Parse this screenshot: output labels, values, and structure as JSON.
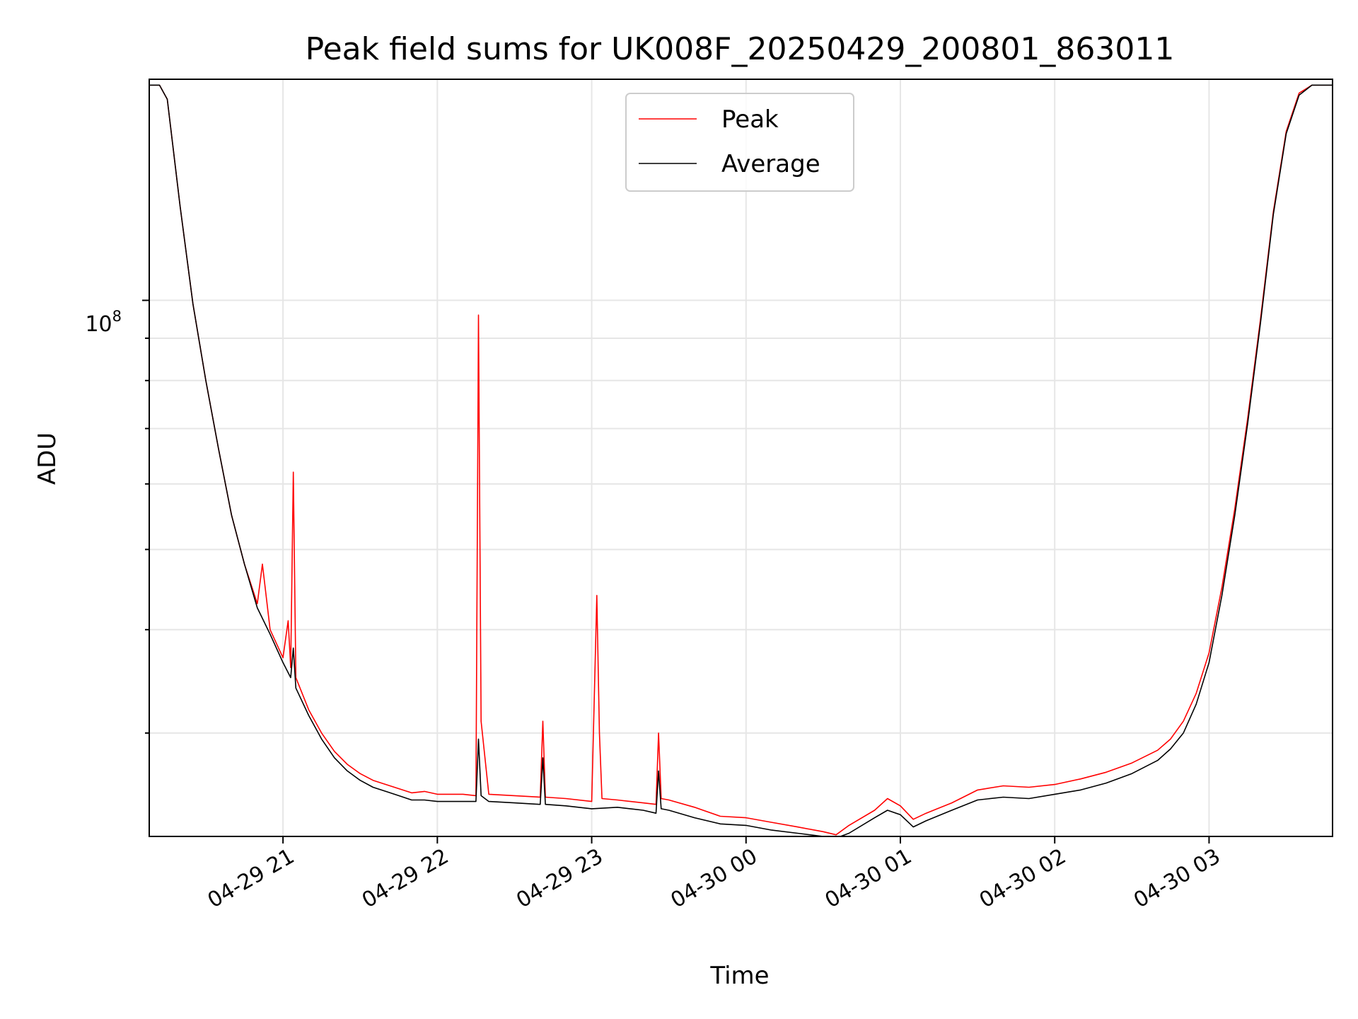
{
  "chart_data": {
    "type": "line",
    "title": "Peak field sums for UK008F_20250429_200801_863011",
    "xlabel": "Time",
    "ylabel": "ADU",
    "y_scale": "log",
    "grid": true,
    "legend_position": "top-center",
    "x_tick_labels": [
      "04-29 21",
      "04-29 22",
      "04-29 23",
      "04-30 00",
      "04-30 01",
      "04-30 02",
      "04-30 03"
    ],
    "x_tick_values": [
      "2025-04-29 21:00",
      "2025-04-29 22:00",
      "2025-04-29 23:00",
      "2025-04-30 00:00",
      "2025-04-30 01:00",
      "2025-04-30 02:00",
      "2025-04-30 03:00"
    ],
    "xlim": [
      "2025-04-29 20:08",
      "2025-04-30 03:48"
    ],
    "y_tick_label_base": "10",
    "y_tick_label_exp": "8",
    "y_tick_value": 100000000,
    "ylim": [
      22500000,
      185000000
    ],
    "colors": {
      "peak": "#ff0000",
      "average": "#000000"
    },
    "series": [
      {
        "name": "Peak",
        "color": "#ff0000",
        "x": [
          "2025-04-29 20:08",
          "2025-04-29 20:12",
          "2025-04-29 20:15",
          "2025-04-29 20:20",
          "2025-04-29 20:25",
          "2025-04-29 20:30",
          "2025-04-29 20:35",
          "2025-04-29 20:40",
          "2025-04-29 20:45",
          "2025-04-29 20:50",
          "2025-04-29 20:52",
          "2025-04-29 20:55",
          "2025-04-29 21:00",
          "2025-04-29 21:02",
          "2025-04-29 21:03",
          "2025-04-29 21:04",
          "2025-04-29 21:05",
          "2025-04-29 21:10",
          "2025-04-29 21:15",
          "2025-04-29 21:20",
          "2025-04-29 21:25",
          "2025-04-29 21:30",
          "2025-04-29 21:35",
          "2025-04-29 21:40",
          "2025-04-29 21:45",
          "2025-04-29 21:50",
          "2025-04-29 21:55",
          "2025-04-29 22:00",
          "2025-04-29 22:10",
          "2025-04-29 22:15",
          "2025-04-29 22:16",
          "2025-04-29 22:17",
          "2025-04-29 22:20",
          "2025-04-29 22:30",
          "2025-04-29 22:40",
          "2025-04-29 22:41",
          "2025-04-29 22:42",
          "2025-04-29 22:50",
          "2025-04-29 23:00",
          "2025-04-29 23:02",
          "2025-04-29 23:03",
          "2025-04-29 23:04",
          "2025-04-29 23:10",
          "2025-04-29 23:20",
          "2025-04-29 23:25",
          "2025-04-29 23:26",
          "2025-04-29 23:27",
          "2025-04-29 23:30",
          "2025-04-29 23:40",
          "2025-04-29 23:50",
          "2025-04-30 00:00",
          "2025-04-30 00:10",
          "2025-04-30 00:20",
          "2025-04-30 00:30",
          "2025-04-30 00:35",
          "2025-04-30 00:40",
          "2025-04-30 00:50",
          "2025-04-30 00:55",
          "2025-04-30 01:00",
          "2025-04-30 01:05",
          "2025-04-30 01:10",
          "2025-04-30 01:20",
          "2025-04-30 01:30",
          "2025-04-30 01:40",
          "2025-04-30 01:50",
          "2025-04-30 02:00",
          "2025-04-30 02:10",
          "2025-04-30 02:20",
          "2025-04-30 02:30",
          "2025-04-30 02:40",
          "2025-04-30 02:45",
          "2025-04-30 02:50",
          "2025-04-30 02:55",
          "2025-04-30 03:00",
          "2025-04-30 03:05",
          "2025-04-30 03:10",
          "2025-04-30 03:15",
          "2025-04-30 03:20",
          "2025-04-30 03:25",
          "2025-04-30 03:30",
          "2025-04-30 03:35",
          "2025-04-30 03:40",
          "2025-04-30 03:45",
          "2025-04-30 03:48"
        ],
        "values": [
          182000000,
          182000000,
          175000000,
          130000000,
          99000000,
          80000000,
          66000000,
          55000000,
          48000000,
          43000000,
          48000000,
          40000000,
          37000000,
          41000000,
          36000000,
          62000000,
          35000000,
          32000000,
          30000000,
          28500000,
          27500000,
          26800000,
          26300000,
          26000000,
          25700000,
          25400000,
          25500000,
          25300000,
          25300000,
          25200000,
          96000000,
          31000000,
          25300000,
          25200000,
          25100000,
          31000000,
          25100000,
          25000000,
          24800000,
          44000000,
          30000000,
          25000000,
          24900000,
          24700000,
          24600000,
          30000000,
          25000000,
          24900000,
          24400000,
          23800000,
          23700000,
          23400000,
          23100000,
          22800000,
          22600000,
          23200000,
          24200000,
          25000000,
          24500000,
          23600000,
          24000000,
          24700000,
          25600000,
          25900000,
          25800000,
          26000000,
          26400000,
          26900000,
          27600000,
          28600000,
          29500000,
          31000000,
          33500000,
          37500000,
          45000000,
          56000000,
          72000000,
          95000000,
          128000000,
          160000000,
          178000000,
          182000000,
          182000000,
          182000000
        ]
      },
      {
        "name": "Average",
        "color": "#000000",
        "x": [
          "2025-04-29 20:08",
          "2025-04-29 20:12",
          "2025-04-29 20:15",
          "2025-04-29 20:20",
          "2025-04-29 20:25",
          "2025-04-29 20:30",
          "2025-04-29 20:35",
          "2025-04-29 20:40",
          "2025-04-29 20:45",
          "2025-04-29 20:50",
          "2025-04-29 20:55",
          "2025-04-29 21:00",
          "2025-04-29 21:03",
          "2025-04-29 21:04",
          "2025-04-29 21:05",
          "2025-04-29 21:10",
          "2025-04-29 21:15",
          "2025-04-29 21:20",
          "2025-04-29 21:25",
          "2025-04-29 21:30",
          "2025-04-29 21:35",
          "2025-04-29 21:40",
          "2025-04-29 21:45",
          "2025-04-29 21:50",
          "2025-04-29 21:55",
          "2025-04-29 22:00",
          "2025-04-29 22:10",
          "2025-04-29 22:15",
          "2025-04-29 22:16",
          "2025-04-29 22:17",
          "2025-04-29 22:20",
          "2025-04-29 22:30",
          "2025-04-29 22:40",
          "2025-04-29 22:41",
          "2025-04-29 22:42",
          "2025-04-29 22:50",
          "2025-04-29 23:00",
          "2025-04-29 23:10",
          "2025-04-29 23:20",
          "2025-04-29 23:25",
          "2025-04-29 23:26",
          "2025-04-29 23:27",
          "2025-04-29 23:30",
          "2025-04-29 23:40",
          "2025-04-29 23:50",
          "2025-04-30 00:00",
          "2025-04-30 00:10",
          "2025-04-30 00:20",
          "2025-04-30 00:30",
          "2025-04-30 00:35",
          "2025-04-30 00:40",
          "2025-04-30 00:50",
          "2025-04-30 00:55",
          "2025-04-30 01:00",
          "2025-04-30 01:05",
          "2025-04-30 01:10",
          "2025-04-30 01:20",
          "2025-04-30 01:30",
          "2025-04-30 01:40",
          "2025-04-30 01:50",
          "2025-04-30 02:00",
          "2025-04-30 02:10",
          "2025-04-30 02:20",
          "2025-04-30 02:30",
          "2025-04-30 02:40",
          "2025-04-30 02:45",
          "2025-04-30 02:50",
          "2025-04-30 02:55",
          "2025-04-30 03:00",
          "2025-04-30 03:05",
          "2025-04-30 03:10",
          "2025-04-30 03:15",
          "2025-04-30 03:20",
          "2025-04-30 03:25",
          "2025-04-30 03:30",
          "2025-04-30 03:35",
          "2025-04-30 03:40",
          "2025-04-30 03:45",
          "2025-04-30 03:48"
        ],
        "values": [
          182000000,
          182000000,
          175000000,
          130000000,
          99000000,
          80000000,
          66000000,
          55000000,
          48000000,
          42500000,
          39500000,
          36500000,
          35000000,
          38000000,
          34000000,
          31500000,
          29500000,
          28000000,
          27000000,
          26300000,
          25800000,
          25500000,
          25200000,
          24900000,
          24900000,
          24800000,
          24800000,
          24800000,
          29500000,
          25200000,
          24800000,
          24700000,
          24600000,
          28000000,
          24600000,
          24500000,
          24300000,
          24400000,
          24200000,
          24000000,
          27000000,
          24300000,
          24200000,
          23700000,
          23300000,
          23200000,
          22900000,
          22700000,
          22500000,
          22400000,
          22700000,
          23700000,
          24200000,
          23900000,
          23100000,
          23500000,
          24200000,
          24900000,
          25100000,
          25000000,
          25300000,
          25600000,
          26100000,
          26800000,
          27800000,
          28700000,
          30000000,
          32500000,
          36500000,
          44000000,
          55000000,
          71000000,
          94000000,
          127000000,
          159000000,
          177000000,
          182000000,
          182000000,
          182000000
        ]
      }
    ]
  }
}
